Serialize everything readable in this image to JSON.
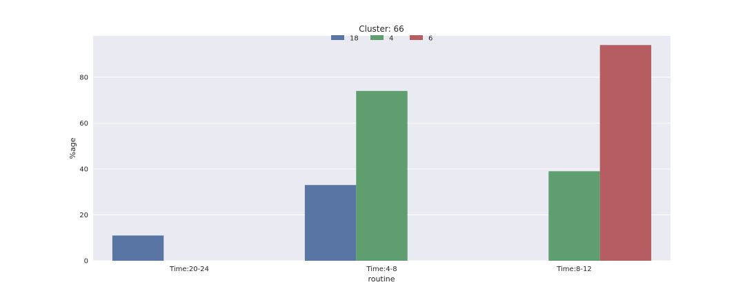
{
  "chart_data": {
    "type": "bar",
    "title": "Cluster: 66",
    "xlabel": "routine",
    "ylabel": "%age",
    "categories": [
      "Time:20-24",
      "Time:4-8",
      "Time:8-12"
    ],
    "series": [
      {
        "name": "18",
        "color": "#5975a4",
        "values": [
          11,
          33,
          null
        ]
      },
      {
        "name": "4",
        "color": "#5f9e6e",
        "values": [
          null,
          74,
          39
        ]
      },
      {
        "name": "6",
        "color": "#b55d60",
        "values": [
          null,
          null,
          94
        ]
      }
    ],
    "ylim": [
      0,
      98
    ],
    "yticks": [
      0,
      20,
      40,
      60,
      80
    ],
    "grid": true,
    "legend_position": "top-center",
    "plot_background": "#eaeaf2",
    "grid_color": "#ffffff"
  }
}
